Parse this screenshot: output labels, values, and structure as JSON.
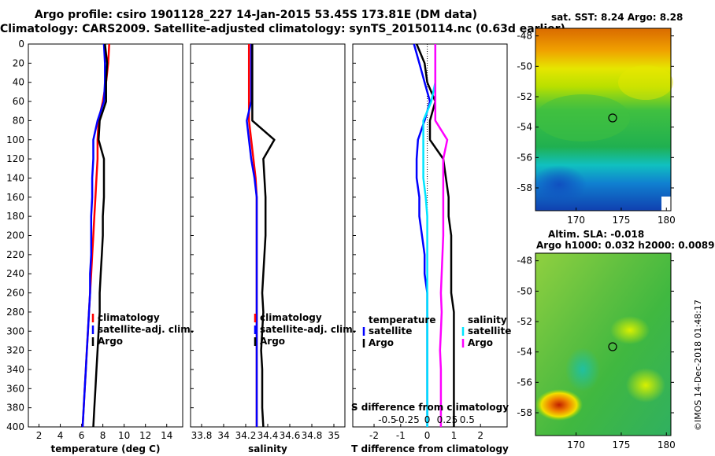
{
  "header": {
    "line1": "Argo profile: csiro 1901128_227 14-Jan-2015 53.45S 173.81E (DM data)",
    "line2": "Climatology: CARS2009. Satellite-adjusted climatology: synTS_20150114.nc (0.63d earlier)"
  },
  "colors": {
    "climatology": "#ff0000",
    "satellite": "#0000ff",
    "argo": "#000000",
    "sat_diff": "#00e5ff",
    "s_sat_diff": "#ff00ff"
  },
  "chart_data": [
    {
      "type": "line",
      "id": "temperature",
      "xlabel": "temperature (deg C)",
      "ylabel": "depth",
      "xlim": [
        1,
        15.5
      ],
      "ylim": [
        400,
        0
      ],
      "xticks": [
        "2",
        "4",
        "6",
        "8",
        "10",
        "12",
        "14"
      ],
      "yticks": [
        "0",
        "20",
        "40",
        "60",
        "80",
        "100",
        "120",
        "140",
        "160",
        "180",
        "200",
        "220",
        "240",
        "260",
        "280",
        "300",
        "320",
        "340",
        "360",
        "380",
        "400"
      ],
      "legend": [
        "climatology",
        "satellite-adj. clim.",
        "Argo"
      ],
      "legend_position": "bottom-center",
      "depth": [
        0,
        20,
        40,
        60,
        80,
        100,
        120,
        140,
        160,
        180,
        200,
        220,
        240,
        260,
        280,
        300,
        320,
        340,
        360,
        380,
        400
      ],
      "series": [
        {
          "name": "climatology",
          "values": [
            8.6,
            8.5,
            8.3,
            8.0,
            7.6,
            7.5,
            7.5,
            7.4,
            7.3,
            7.2,
            7.1,
            7.0,
            6.9,
            6.8,
            6.7,
            6.6,
            6.5,
            6.4,
            6.3,
            6.2,
            6.1
          ]
        },
        {
          "name": "satellite-adj. clim.",
          "values": [
            8.1,
            8.2,
            8.2,
            8.1,
            7.5,
            7.1,
            7.1,
            7.0,
            7.0,
            6.9,
            6.9,
            6.9,
            6.8,
            6.8,
            6.7,
            6.6,
            6.5,
            6.4,
            6.3,
            6.2,
            6.1
          ]
        },
        {
          "name": "Argo",
          "values": [
            8.2,
            8.4,
            8.3,
            8.3,
            7.7,
            7.6,
            8.1,
            8.1,
            8.1,
            8.0,
            8.0,
            7.9,
            7.8,
            7.7,
            7.7,
            7.6,
            7.5,
            7.4,
            7.3,
            7.2,
            7.1
          ]
        }
      ]
    },
    {
      "type": "line",
      "id": "salinity",
      "xlabel": "salinity",
      "xlim": [
        33.7,
        35.1
      ],
      "ylim": [
        400,
        0
      ],
      "xticks": [
        "33.8",
        "34",
        "34.2",
        "34.4",
        "34.6",
        "34.8",
        "35"
      ],
      "legend": [
        "climatology",
        "satellite-adj. clim.",
        "Argo"
      ],
      "legend_position": "bottom-center",
      "depth": [
        0,
        20,
        40,
        60,
        80,
        100,
        120,
        140,
        160,
        180,
        200,
        220,
        240,
        260,
        280,
        300,
        320,
        340,
        360,
        380,
        400
      ],
      "series": [
        {
          "name": "climatology",
          "values": [
            34.23,
            34.23,
            34.23,
            34.23,
            34.23,
            34.25,
            34.27,
            34.29,
            34.3,
            34.3,
            34.3,
            34.3,
            34.3,
            34.3,
            34.3,
            34.3,
            34.3,
            34.3,
            34.3,
            34.3,
            34.3
          ]
        },
        {
          "name": "satellite-adj. clim.",
          "values": [
            34.25,
            34.25,
            34.25,
            34.25,
            34.21,
            34.23,
            34.25,
            34.28,
            34.3,
            34.3,
            34.3,
            34.3,
            34.3,
            34.3,
            34.3,
            34.3,
            34.3,
            34.3,
            34.3,
            34.3,
            34.3
          ]
        },
        {
          "name": "Argo",
          "values": [
            34.26,
            34.26,
            34.26,
            34.26,
            34.26,
            34.46,
            34.36,
            34.37,
            34.38,
            34.38,
            34.38,
            34.37,
            34.36,
            34.35,
            34.36,
            34.35,
            34.34,
            34.35,
            34.35,
            34.35,
            34.36
          ]
        }
      ]
    },
    {
      "type": "line",
      "id": "difference",
      "xlabel": "T difference from climatology",
      "xlabel_top": "S difference from climatology",
      "xlim": [
        -2.8,
        3.0
      ],
      "ylim": [
        400,
        0
      ],
      "xticks": [
        "-2",
        "-1",
        "0",
        "1",
        "2"
      ],
      "xticks_top": [
        "-0.5",
        "-0.25",
        "0",
        "0.25",
        "0.5"
      ],
      "legend_left_title": "temperature",
      "legend_left": [
        "satellite",
        "Argo"
      ],
      "legend_right_title": "salinity",
      "legend_right": [
        "satellite",
        "Argo"
      ],
      "depth": [
        0,
        20,
        40,
        60,
        80,
        100,
        120,
        140,
        160,
        180,
        200,
        220,
        240,
        260,
        280,
        300,
        320,
        340,
        360,
        380,
        400
      ],
      "series": [
        {
          "name": "temperature satellite",
          "values": [
            -0.5,
            -0.3,
            -0.1,
            0.1,
            -0.1,
            -0.35,
            -0.4,
            -0.4,
            -0.3,
            -0.3,
            -0.2,
            -0.1,
            -0.1,
            0,
            0,
            0,
            0,
            0,
            0,
            0,
            0
          ]
        },
        {
          "name": "temperature Argo",
          "values": [
            -0.4,
            -0.1,
            0,
            0.3,
            0.1,
            0.1,
            0.6,
            0.7,
            0.8,
            0.8,
            0.9,
            0.9,
            0.9,
            0.9,
            1.0,
            1.0,
            1.0,
            1.0,
            1.0,
            1.0,
            1.0
          ]
        },
        {
          "name": "salinity satellite",
          "values": [
            0.1,
            0.1,
            0.1,
            0.05,
            -0.05,
            -0.05,
            -0.05,
            -0.05,
            -0.02,
            0,
            0,
            0,
            0,
            0,
            0,
            0,
            0,
            0,
            0,
            0,
            0
          ]
        },
        {
          "name": "salinity Argo",
          "values": [
            0.1,
            0.1,
            0.1,
            0.1,
            0.1,
            0.25,
            0.2,
            0.2,
            0.2,
            0.2,
            0.2,
            0.19,
            0.18,
            0.17,
            0.18,
            0.17,
            0.16,
            0.17,
            0.17,
            0.17,
            0.17
          ]
        }
      ]
    },
    {
      "type": "heatmap",
      "id": "sst_map",
      "title": "sat. SST: 8.24 Argo: 8.28",
      "xticks": [
        "170",
        "175",
        "180"
      ],
      "yticks": [
        "-48",
        "-50",
        "-52",
        "-54",
        "-56",
        "-58"
      ],
      "xlim": [
        165.5,
        180.5
      ],
      "ylim": [
        -59.5,
        -47.5
      ],
      "argo_marker": {
        "lon": 173.81,
        "lat": -53.45
      }
    },
    {
      "type": "heatmap",
      "id": "sla_map",
      "title": "Altim. SLA: -0.018",
      "subtitle": "Argo h1000: 0.032 h2000: 0.0089",
      "xticks": [
        "170",
        "175",
        "180"
      ],
      "yticks": [
        "-48",
        "-50",
        "-52",
        "-54",
        "-56",
        "-58"
      ],
      "xlim": [
        165.5,
        180.5
      ],
      "ylim": [
        -59.5,
        -47.5
      ],
      "argo_marker": {
        "lon": 173.81,
        "lat": -53.45
      }
    }
  ],
  "footer": {
    "credit": "©IMOS 14-Dec-2018 01:48:17"
  }
}
